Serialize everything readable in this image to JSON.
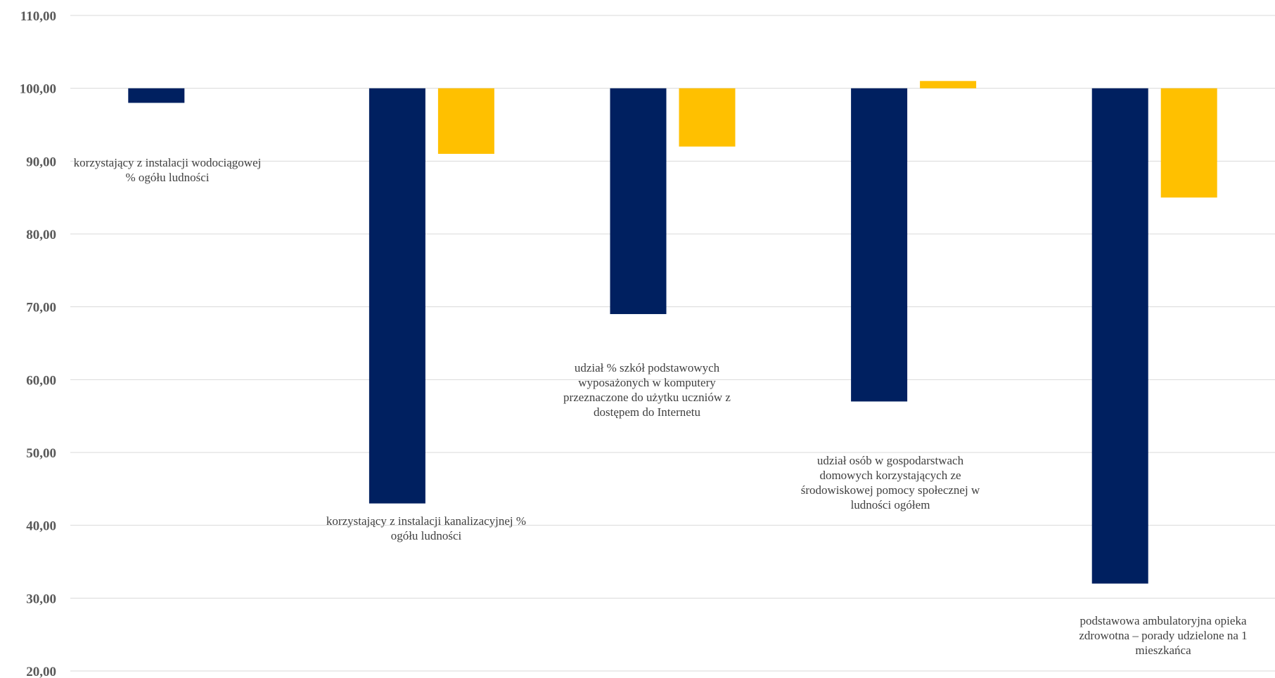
{
  "chart_data": {
    "type": "bar",
    "baseline": 100,
    "ylim": [
      20,
      110
    ],
    "yticks": [
      20,
      30,
      40,
      50,
      60,
      70,
      80,
      90,
      100,
      110
    ],
    "ytick_labels": [
      "20,00",
      "30,00",
      "40,00",
      "50,00",
      "60,00",
      "70,00",
      "80,00",
      "90,00",
      "100,00",
      "110,00"
    ],
    "grid": true,
    "legend": "none",
    "categories": [
      "korzystający z instalacji wodociągowej % ogółu ludności",
      "korzystający z instalacji kanalizacyjnej % ogółu ludności",
      "udział % szkół podstawowych wyposażonych w komputery przeznaczone do użytku uczniów z dostępem do Internetu",
      "udział osób w gospodarstwach domowych korzystających ze środowiskowej pomocy społecznej w ludności ogółem",
      "podstawowa ambulatoryjna opieka zdrowotna – porady udzielone na 1 mieszkańca"
    ],
    "series": [
      {
        "color": "#002060",
        "values": [
          98,
          43,
          69,
          57,
          32
        ]
      },
      {
        "color": "#FFC000",
        "values": [
          null,
          91,
          92,
          101,
          85
        ]
      }
    ]
  }
}
